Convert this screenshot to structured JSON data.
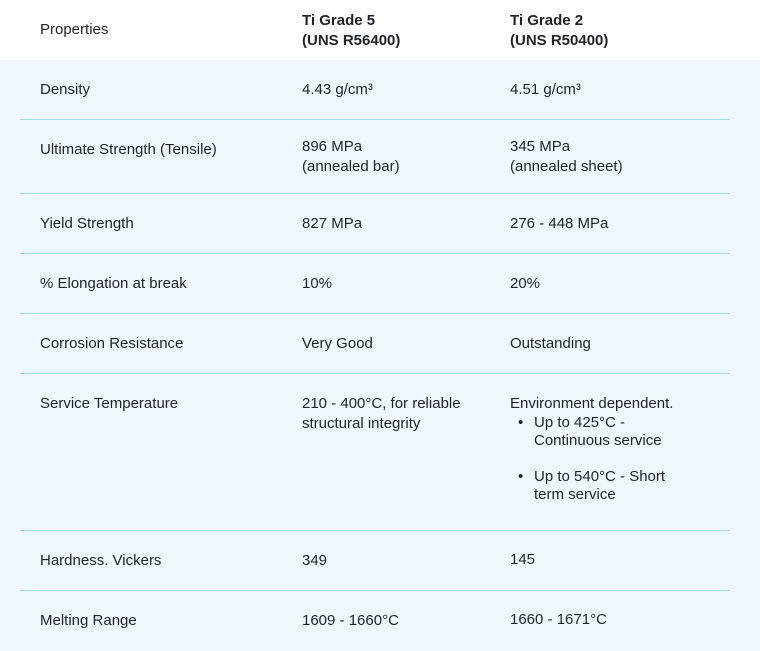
{
  "table": {
    "header": {
      "properties_label": "Properties",
      "grade5": {
        "line1": "Ti Grade 5",
        "line2": "(UNS R56400)"
      },
      "grade2": {
        "line1": "Ti Grade 2",
        "line2": "(UNS R50400)"
      }
    },
    "rows": [
      {
        "property": "Density",
        "grade5": [
          "4.43 g/cm³"
        ],
        "grade2": [
          "4.51 g/cm³"
        ]
      },
      {
        "property": "Ultimate Strength (Tensile)",
        "grade5": [
          "896 MPa",
          "(annealed bar)"
        ],
        "grade2": [
          "345 MPa",
          "(annealed sheet)"
        ]
      },
      {
        "property": "Yield Strength",
        "grade5": [
          "827 MPa"
        ],
        "grade2": [
          "276 - 448 MPa"
        ]
      },
      {
        "property": "% Elongation at break",
        "grade5": [
          "10%"
        ],
        "grade2": [
          "20%"
        ]
      },
      {
        "property": "Corrosion Resistance",
        "grade5": [
          "Very Good"
        ],
        "grade2": [
          "Outstanding"
        ]
      },
      {
        "property": "Service Temperature",
        "grade5": [
          "210 - 400°C, for reliable",
          "structural integrity"
        ],
        "grade2_intro": "Environment dependent.",
        "grade2_bullets": [
          [
            "Up to 425°C -",
            "Continuous service"
          ],
          [
            "Up to 540°C - Short",
            "term service"
          ]
        ]
      },
      {
        "property": "Hardness. Vickers",
        "grade5": [
          "349"
        ],
        "grade2": [
          "145"
        ]
      },
      {
        "property": "Melting Range",
        "grade5": [
          "1609 - 1660°C"
        ],
        "grade2": [
          "1660 - 1671°C"
        ]
      }
    ]
  }
}
